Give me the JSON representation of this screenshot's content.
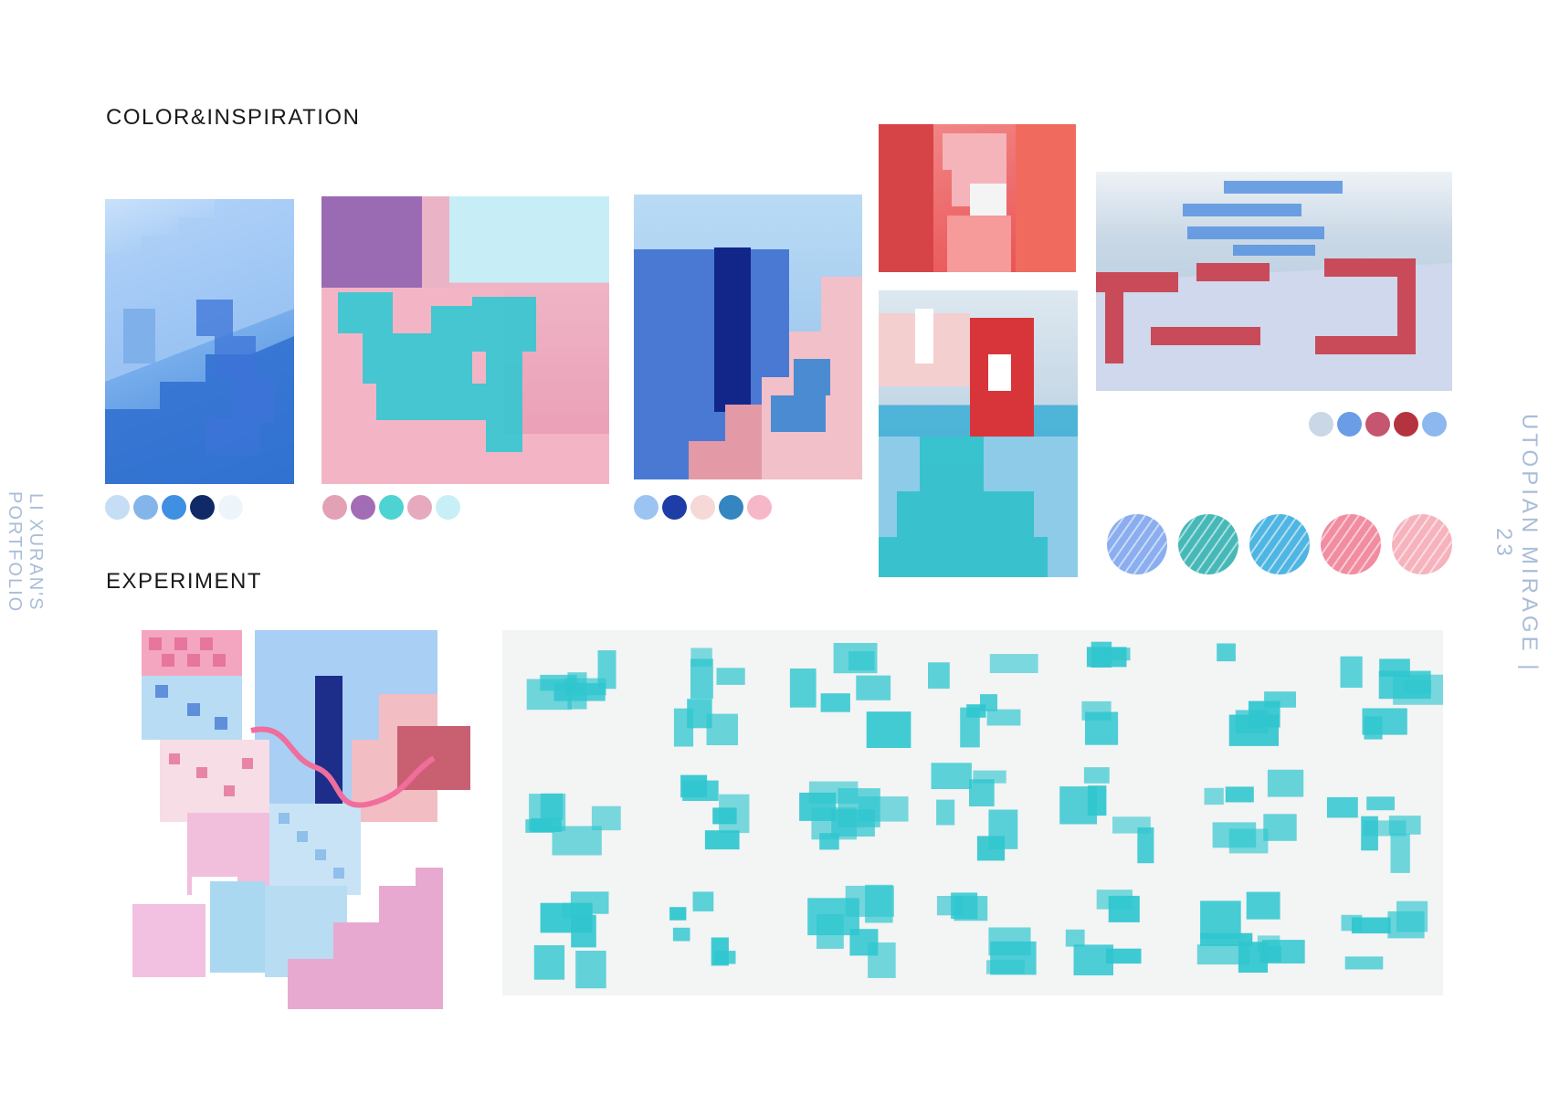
{
  "page": {
    "section_color": "COLOR&INSPIRATION",
    "section_experiment": "EXPERIMENT",
    "side_left": "LI XURAN'S PORTFOLIO",
    "side_right": "UTOPIAN  MIRAGE  | 23"
  },
  "palettes": {
    "p1": [
      "#c5ddf5",
      "#84b5ea",
      "#3f8fe2",
      "#0f2a66",
      "#eef5fa"
    ],
    "p2": [
      "#e3a1b6",
      "#a36db5",
      "#4dd3d2",
      "#e6a9bd",
      "#c6f0f6"
    ],
    "p3": [
      "#9cc4f2",
      "#1e3da6",
      "#f6d8d6",
      "#3486c1",
      "#f6b7c8"
    ],
    "p4": [
      "#c9d7e6",
      "#6a9de6",
      "#c65570",
      "#b5323f",
      "#8db8ef"
    ]
  },
  "blobs": [
    "#8aaef0",
    "#47b8b8",
    "#4fb5e2",
    "#f28ca0",
    "#f6b3bd"
  ],
  "colors": {
    "accent_cyan": "#2fc6cf",
    "side_text": "#a9bdd8"
  }
}
